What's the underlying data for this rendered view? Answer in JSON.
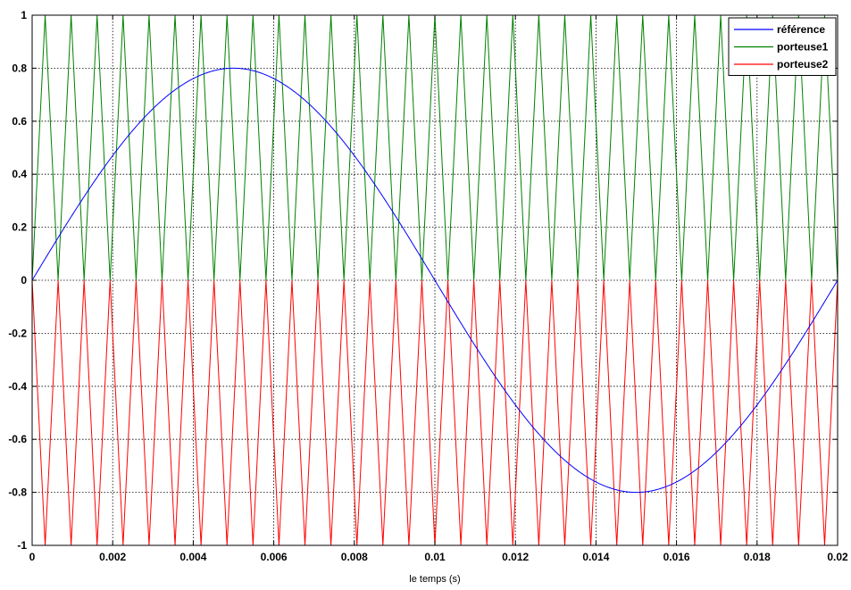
{
  "chart_data": {
    "type": "line",
    "title": "",
    "xlabel": "le temps (s)",
    "ylabel": "",
    "xlim": [
      0,
      0.02
    ],
    "ylim": [
      -1,
      1
    ],
    "grid": true,
    "grid_style": "dotted",
    "legend_position": "top-right",
    "x_ticks": [
      0,
      0.002,
      0.004,
      0.006,
      0.008,
      0.01,
      0.012,
      0.014,
      0.016,
      0.018,
      0.02
    ],
    "x_tick_labels": [
      "0",
      "0.002",
      "0.004",
      "0.006",
      "0.008",
      "0.01",
      "0.012",
      "0.014",
      "0.016",
      "0.018",
      "0.02"
    ],
    "y_ticks": [
      -1,
      -0.8,
      -0.6,
      -0.4,
      -0.2,
      0,
      0.2,
      0.4,
      0.6,
      0.8,
      1
    ],
    "y_tick_labels": [
      "-1",
      "-0.8",
      "-0.6",
      "-0.4",
      "-0.2",
      "0",
      "0.2",
      "0.4",
      "0.6",
      "0.8",
      "1"
    ],
    "series": [
      {
        "name": "référence",
        "color": "#0000ff",
        "kind": "sine",
        "amplitude": 0.8,
        "frequency_hz": 50,
        "phase_deg": 0
      },
      {
        "name": "porteuse1",
        "color": "#008000",
        "kind": "triangle",
        "min": 0,
        "max": 1,
        "frequency_hz": 1550,
        "starts_at": "min"
      },
      {
        "name": "porteuse2",
        "color": "#ff0000",
        "kind": "triangle",
        "min": -1,
        "max": 0,
        "frequency_hz": 1550,
        "starts_at": "max"
      }
    ]
  }
}
